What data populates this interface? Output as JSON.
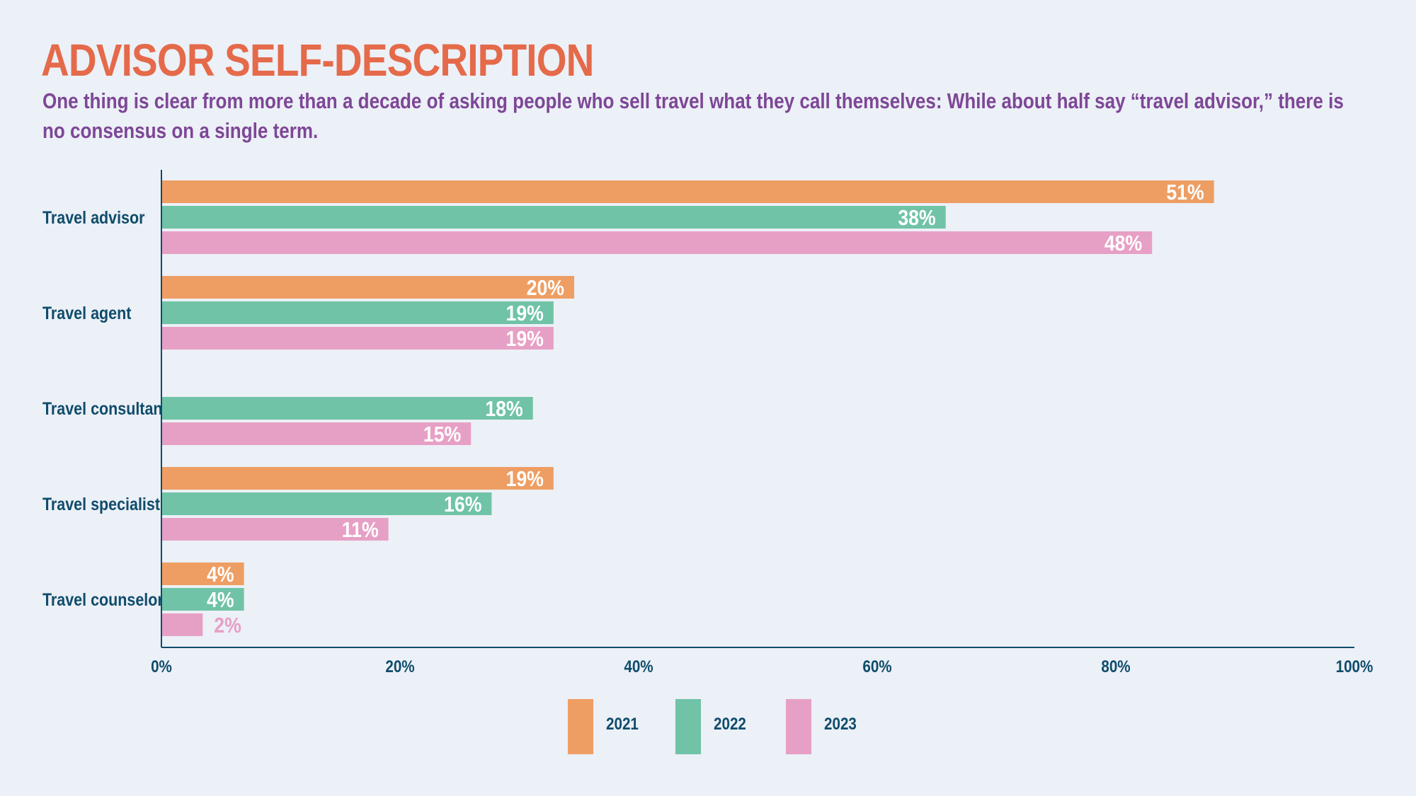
{
  "header": {
    "title": "ADVISOR SELF-DESCRIPTION",
    "subtitle": "One thing is clear from more than a decade of asking people who sell travel what they call themselves: While about half say “travel advisor,” there is no consensus on a single term."
  },
  "colors": {
    "2021": "#EE9E63",
    "2022": "#70C3A6",
    "2023": "#E7A0C5",
    "axis": "#0F4C6B",
    "label_text": "#0F4C6B",
    "inside_label": "#FFFFFF"
  },
  "chart_data": {
    "type": "bar",
    "orientation": "horizontal",
    "categories": [
      "Travel advisor",
      "Travel agent",
      "Travel consultant",
      "Travel specialist",
      "Travel counselor"
    ],
    "series": [
      {
        "name": "2021",
        "values": [
          51,
          20,
          null,
          19,
          4
        ]
      },
      {
        "name": "2022",
        "values": [
          38,
          19,
          18,
          16,
          4
        ]
      },
      {
        "name": "2023",
        "values": [
          48,
          19,
          15,
          11,
          2
        ]
      }
    ],
    "xlim": [
      0,
      100
    ],
    "x_ticks": [
      "0%",
      "20%",
      "40%",
      "60%",
      "80%",
      "100%"
    ],
    "value_suffix": "%",
    "grid": false,
    "legend_position": "bottom-center"
  }
}
